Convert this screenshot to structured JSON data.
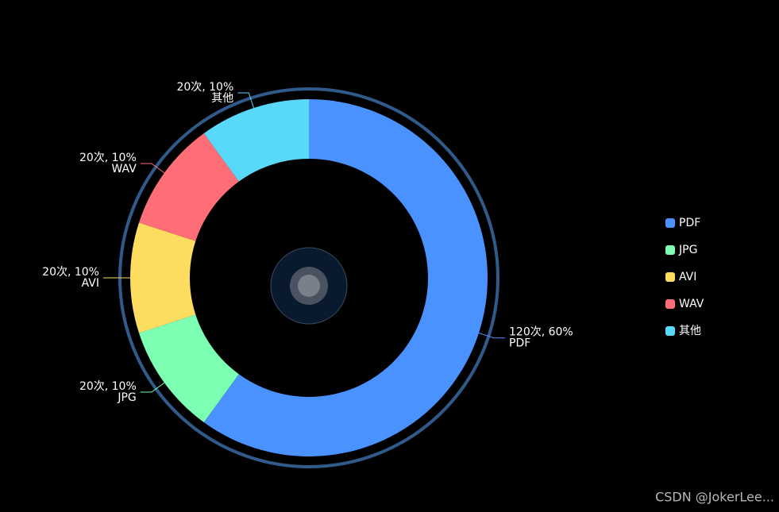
{
  "chart_data": {
    "type": "donut",
    "categories": [
      "PDF",
      "JPG",
      "AVI",
      "WAV",
      "其他"
    ],
    "values": [
      120,
      20,
      20,
      20,
      20
    ],
    "value_labels": [
      "120次, 60%",
      "20次, 10%",
      "20次, 10%",
      "20次, 10%",
      "20次, 10%"
    ],
    "colors": [
      "#4992ff",
      "#7cffb2",
      "#fddd60",
      "#ff6e76",
      "#58d9f9"
    ],
    "legend": "right"
  },
  "watermark": "CSDN @JokerLee..."
}
